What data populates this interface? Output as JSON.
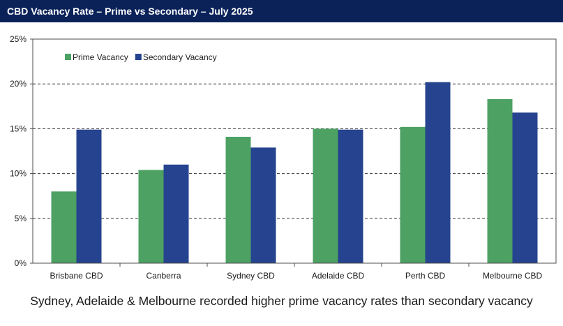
{
  "header": {
    "title": "CBD Vacancy Rate – Prime vs Secondary – July 2025"
  },
  "caption": "Sydney, Adelaide & Melbourne recorded higher prime vacancy rates than secondary vacancy",
  "colors": {
    "header_bg": "#0b2259",
    "prime": "#4ca163",
    "secondary": "#25438e"
  },
  "chart_data": {
    "type": "bar",
    "title": "CBD Vacancy Rate – Prime vs Secondary – July 2025",
    "xlabel": "",
    "ylabel": "",
    "categories": [
      "Brisbane CBD",
      "Canberra",
      "Sydney CBD",
      "Adelaide CBD",
      "Perth CBD",
      "Melbourne CBD"
    ],
    "series": [
      {
        "name": "Prime Vacancy",
        "color": "#4ca163",
        "values": [
          8.0,
          10.4,
          14.1,
          15.0,
          15.2,
          18.3
        ]
      },
      {
        "name": "Secondary Vacancy",
        "color": "#25438e",
        "values": [
          14.9,
          11.0,
          12.9,
          14.9,
          20.2,
          16.8
        ]
      }
    ],
    "ylim": [
      0,
      25
    ],
    "yticks": [
      "0%",
      "5%",
      "10%",
      "15%",
      "20%",
      "25%"
    ],
    "ytick_values": [
      0,
      5,
      10,
      15,
      20,
      25
    ],
    "grid": "horizontal dashed",
    "legend": "top-left"
  }
}
